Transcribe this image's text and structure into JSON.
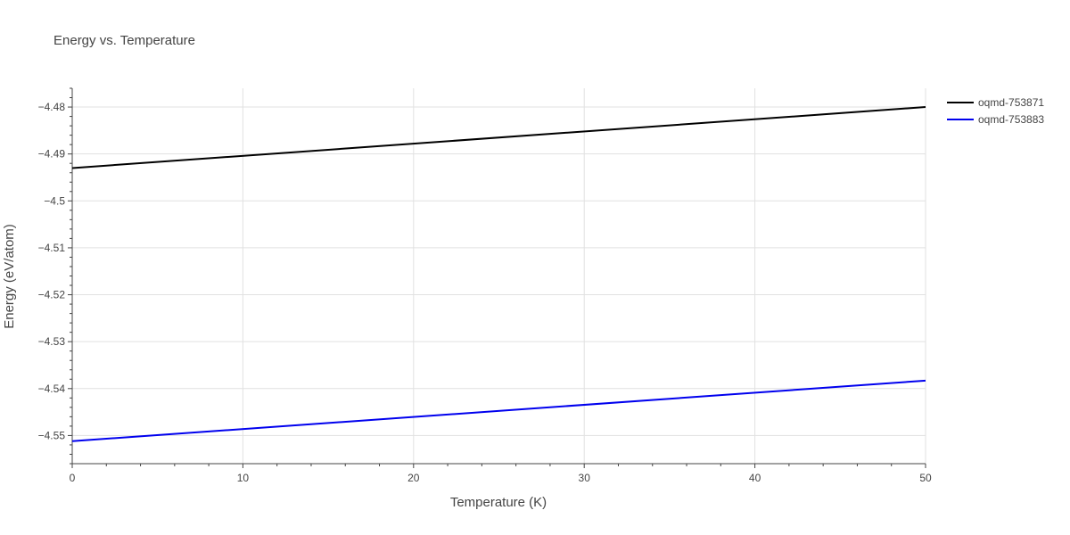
{
  "chart_data": {
    "type": "line",
    "title": "Energy vs. Temperature",
    "xlabel": "Temperature (K)",
    "ylabel": "Energy (eV/atom)",
    "xlim": [
      0,
      50
    ],
    "ylim": [
      -4.556,
      -4.476
    ],
    "x_ticks": [
      0,
      10,
      20,
      30,
      40,
      50
    ],
    "x_tick_labels": [
      "0",
      "10",
      "20",
      "30",
      "40",
      "50"
    ],
    "y_ticks": [
      -4.48,
      -4.49,
      -4.5,
      -4.51,
      -4.52,
      -4.53,
      -4.54,
      -4.55
    ],
    "y_tick_labels": [
      "−4.48",
      "−4.49",
      "−4.5",
      "−4.51",
      "−4.52",
      "−4.53",
      "−4.54",
      "−4.55"
    ],
    "grid": true,
    "legend_position": "top-right",
    "series": [
      {
        "name": "oqmd-753871",
        "color": "#000000",
        "x": [
          0,
          50
        ],
        "y": [
          -4.493,
          -4.48
        ]
      },
      {
        "name": "oqmd-753883",
        "color": "#0000ee",
        "x": [
          0,
          50
        ],
        "y": [
          -4.5512,
          -4.5383
        ]
      }
    ]
  }
}
